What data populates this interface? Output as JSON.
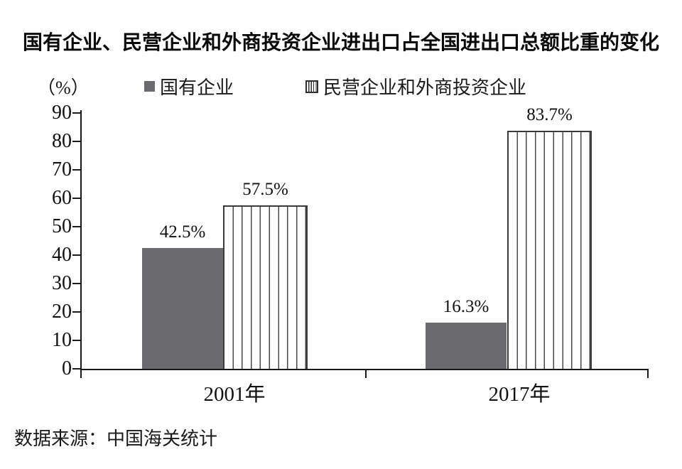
{
  "chart": {
    "title": "国有企业、民营企业和外商投资企业进出口占全国进出口总额比重的变化",
    "unit_label": "（%）",
    "source": "数据来源：中国海关统计"
  },
  "colors": {
    "solid_bar": "#6b6b6f",
    "stripe_line": "#4a4a4a",
    "axis": "#1a1a1a",
    "text": "#111111"
  },
  "chart_data": {
    "type": "bar",
    "title": "国有企业、民营企业和外商投资企业进出口占全国进出口总额比重的变化",
    "xlabel": "",
    "ylabel": "（%）",
    "categories": [
      "2001年",
      "2017年"
    ],
    "series": [
      {
        "name": "国有企业",
        "style": "solid",
        "values": [
          42.5,
          16.3
        ]
      },
      {
        "name": "民营企业和外商投资企业",
        "style": "striped",
        "values": [
          57.5,
          83.7
        ]
      }
    ],
    "value_labels": [
      [
        "42.5%",
        "16.3%"
      ],
      [
        "57.5%",
        "83.7%"
      ]
    ],
    "y_ticks": [
      0,
      10,
      20,
      30,
      40,
      50,
      60,
      70,
      80,
      90
    ],
    "ylim": [
      0,
      90
    ],
    "grid": false,
    "legend_position": "top",
    "source": "数据来源：中国海关统计"
  }
}
